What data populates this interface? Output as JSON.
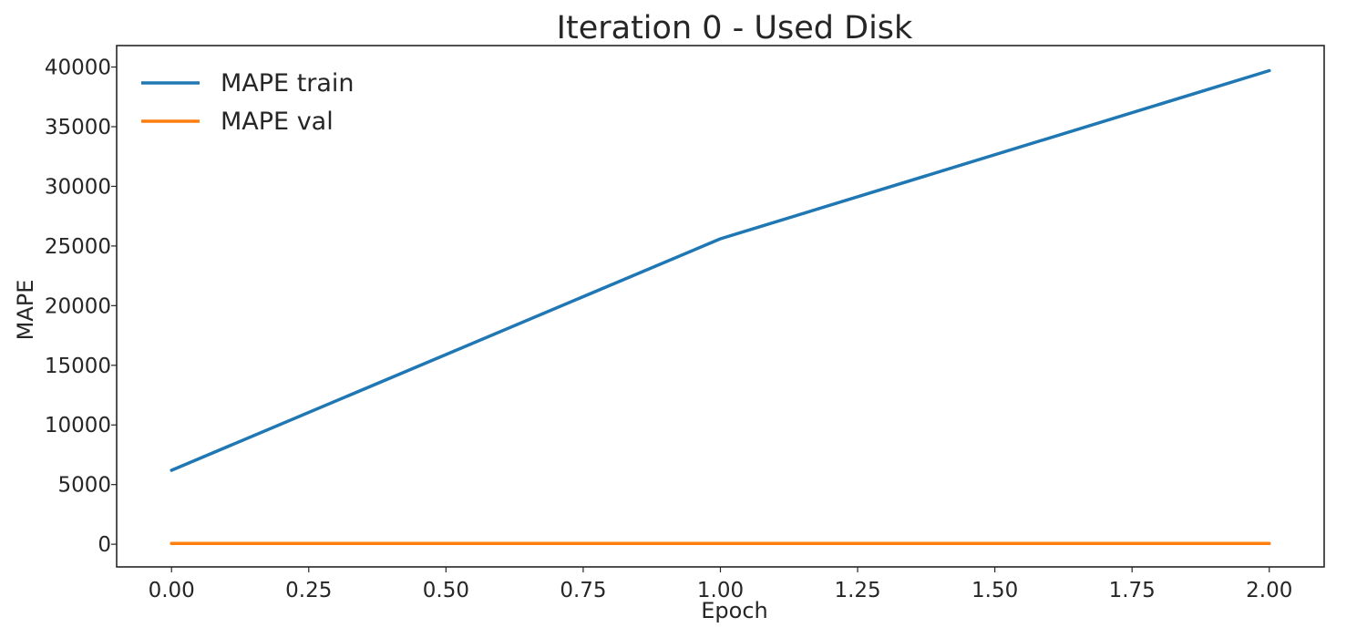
{
  "chart_data": {
    "type": "line",
    "title": "Iteration 0 - Used Disk",
    "xlabel": "Epoch",
    "ylabel": "MAPE",
    "x": [
      0,
      1,
      2
    ],
    "series": [
      {
        "name": "MAPE train",
        "values": [
          6200,
          25600,
          39700
        ],
        "color": "#1f77b4"
      },
      {
        "name": "MAPE val",
        "values": [
          60,
          60,
          60
        ],
        "color": "#ff7f0e"
      }
    ],
    "xlim": [
      -0.1,
      2.1
    ],
    "ylim": [
      -1900,
      41800
    ],
    "xticks": [
      0,
      0.25,
      0.5,
      0.75,
      1,
      1.25,
      1.5,
      1.75,
      2
    ],
    "xtick_labels": [
      "0.00",
      "0.25",
      "0.50",
      "0.75",
      "1.00",
      "1.25",
      "1.50",
      "1.75",
      "2.00"
    ],
    "yticks": [
      0,
      5000,
      10000,
      15000,
      20000,
      25000,
      30000,
      35000,
      40000
    ],
    "ytick_labels": [
      "0",
      "5000",
      "10000",
      "15000",
      "20000",
      "25000",
      "30000",
      "35000",
      "40000"
    ],
    "grid": false,
    "legend_position": "top-left"
  }
}
